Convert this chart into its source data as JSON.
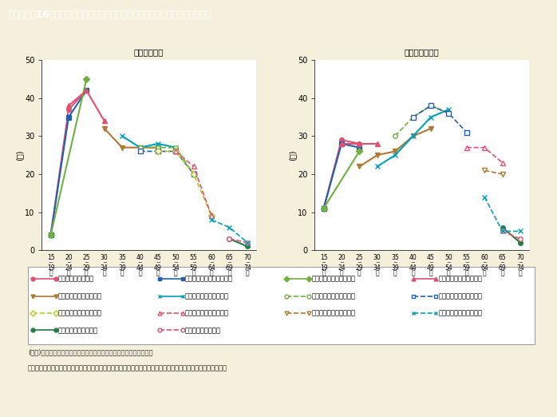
{
  "title": "第１－特－16図　女性の年齢階級別労働力率の世代による特徴（雇用形態別）",
  "title_bg": "#7a6642",
  "title_fg": "#ffffff",
  "bg_color": "#f5f0dc",
  "plot_bg": "#ffffff",
  "left_subtitle": "「正規雇用」",
  "right_subtitle": "「非正規雇用」",
  "left_ylabel": "(％)",
  "right_ylabel": "(％)",
  "ylim": [
    0,
    50
  ],
  "yticks": [
    0,
    10,
    20,
    30,
    40,
    50
  ],
  "x_labels_top": [
    "15",
    "20",
    "25",
    "30",
    "35",
    "40",
    "45",
    "50",
    "55",
    "60",
    "65",
    "70"
  ],
  "x_labels_bot": [
    "19",
    "24",
    "29",
    "34",
    "39",
    "44",
    "49",
    "54",
    "59",
    "64",
    "69",
    "74"
  ],
  "series": [
    {
      "label": "平成５～９年生まれ",
      "color": "#e05070",
      "linestyle": "solid",
      "marker": "o",
      "mfc": "#e05070",
      "lw": 1.5,
      "ms": 4,
      "left_data": [
        4,
        37,
        42,
        null,
        null,
        null,
        null,
        null,
        null,
        null,
        null,
        null
      ],
      "right_data": [
        11,
        29,
        28,
        null,
        null,
        null,
        null,
        null,
        null,
        null,
        null,
        null
      ]
    },
    {
      "label": "昭和６３～平成４年生まれ",
      "color": "#2060b0",
      "linestyle": "solid",
      "marker": "s",
      "mfc": "#2060b0",
      "lw": 1.5,
      "ms": 4,
      "left_data": [
        4,
        35,
        42,
        null,
        null,
        null,
        null,
        null,
        null,
        null,
        null,
        null
      ],
      "right_data": [
        11,
        28,
        27,
        null,
        null,
        null,
        null,
        null,
        null,
        null,
        null,
        null
      ]
    },
    {
      "label": "昭和５８～６２年生まれ",
      "color": "#70b040",
      "linestyle": "solid",
      "marker": "D",
      "mfc": "#70b040",
      "lw": 1.5,
      "ms": 4,
      "left_data": [
        4,
        null,
        45,
        null,
        null,
        null,
        null,
        null,
        null,
        null,
        null,
        null
      ],
      "right_data": [
        11,
        null,
        26,
        null,
        null,
        null,
        null,
        null,
        null,
        null,
        null,
        null
      ]
    },
    {
      "label": "昭和５３～５７年生まれ",
      "color": "#e05070",
      "linestyle": "solid",
      "marker": "^",
      "mfc": "#e05070",
      "lw": 1.5,
      "ms": 4,
      "left_data": [
        null,
        38,
        42,
        34,
        null,
        null,
        null,
        null,
        null,
        null,
        null,
        null
      ],
      "right_data": [
        null,
        28,
        28,
        28,
        null,
        null,
        null,
        null,
        null,
        null,
        null,
        null
      ]
    },
    {
      "label": "昭和４８～５２年生まれ",
      "color": "#b07830",
      "linestyle": "solid",
      "marker": "v",
      "mfc": "#b07830",
      "lw": 1.5,
      "ms": 4,
      "left_data": [
        null,
        null,
        null,
        32,
        27,
        27,
        27,
        null,
        null,
        null,
        null,
        null
      ],
      "right_data": [
        null,
        null,
        22,
        25,
        26,
        30,
        32,
        null,
        null,
        null,
        null,
        null
      ]
    },
    {
      "label": "昭和４３～４７年生まれ",
      "color": "#00a0c0",
      "linestyle": "solid",
      "marker": "x",
      "mfc": "#00a0c0",
      "lw": 1.5,
      "ms": 5,
      "left_data": [
        null,
        null,
        null,
        null,
        30,
        27,
        28,
        27,
        null,
        null,
        null,
        null
      ],
      "right_data": [
        null,
        null,
        null,
        22,
        25,
        30,
        35,
        37,
        null,
        null,
        null,
        null
      ]
    },
    {
      "label": "昭和３８～４２年生まれ",
      "color": "#70b040",
      "linestyle": "dashed",
      "marker": "o",
      "mfc": "white",
      "lw": 1.2,
      "ms": 4,
      "left_data": [
        null,
        null,
        null,
        null,
        null,
        27,
        27,
        27,
        20,
        null,
        null,
        null
      ],
      "right_data": [
        null,
        null,
        null,
        null,
        30,
        35,
        38,
        36,
        null,
        null,
        null,
        null
      ]
    },
    {
      "label": "昭和３３～３７年生まれ",
      "color": "#2060b0",
      "linestyle": "dashed",
      "marker": "s",
      "mfc": "white",
      "lw": 1.2,
      "ms": 4,
      "left_data": [
        null,
        null,
        null,
        null,
        null,
        26,
        26,
        26,
        20,
        null,
        null,
        null
      ],
      "right_data": [
        null,
        null,
        null,
        null,
        null,
        35,
        38,
        36,
        31,
        null,
        null,
        null
      ]
    },
    {
      "label": "昭和２８～３２年生まれ",
      "color": "#b8c820",
      "linestyle": "dashed",
      "marker": "D",
      "mfc": "white",
      "lw": 1.2,
      "ms": 4,
      "left_data": [
        null,
        null,
        null,
        null,
        null,
        null,
        26,
        26,
        20,
        9,
        null,
        null
      ],
      "right_data": [
        null,
        null,
        null,
        null,
        null,
        null,
        null,
        null,
        null,
        null,
        null,
        null
      ]
    },
    {
      "label": "昭和２３～２７年生まれ",
      "color": "#e05070",
      "linestyle": "dashed",
      "marker": "^",
      "mfc": "white",
      "lw": 1.2,
      "ms": 4,
      "left_data": [
        null,
        null,
        null,
        null,
        null,
        null,
        null,
        26,
        22,
        9,
        null,
        null
      ],
      "right_data": [
        null,
        null,
        null,
        null,
        null,
        null,
        null,
        null,
        27,
        27,
        23,
        null
      ]
    },
    {
      "label": "昭和１８～２２年生まれ",
      "color": "#b07830",
      "linestyle": "dashed",
      "marker": "v",
      "mfc": "white",
      "lw": 1.2,
      "ms": 4,
      "left_data": [
        null,
        null,
        null,
        null,
        null,
        null,
        null,
        null,
        null,
        null,
        null,
        null
      ],
      "right_data": [
        null,
        null,
        null,
        null,
        null,
        null,
        null,
        null,
        null,
        21,
        20,
        null
      ]
    },
    {
      "label": "昭和８～１２年生まれ",
      "color": "#208040",
      "linestyle": "solid",
      "marker": "o",
      "mfc": "#208040",
      "lw": 1.5,
      "ms": 4,
      "left_data": [
        null,
        null,
        null,
        null,
        null,
        null,
        null,
        null,
        null,
        null,
        3,
        1
      ],
      "right_data": [
        null,
        null,
        null,
        null,
        null,
        null,
        null,
        null,
        null,
        null,
        6,
        2
      ]
    },
    {
      "label": "昭和３～７年生まれ",
      "color": "#e05070",
      "linestyle": "dashed",
      "marker": "o",
      "mfc": "white",
      "lw": 1.2,
      "ms": 4,
      "left_data": [
        null,
        null,
        null,
        null,
        null,
        null,
        null,
        null,
        null,
        null,
        3,
        2
      ],
      "right_data": [
        null,
        null,
        null,
        null,
        null,
        null,
        null,
        null,
        null,
        null,
        5,
        3
      ]
    },
    {
      "label": "昭和１３～１７年生まれ",
      "color": "#00a0c0",
      "linestyle": "dashed",
      "marker": "x",
      "mfc": "#00a0c0",
      "lw": 1.2,
      "ms": 5,
      "left_data": [
        null,
        null,
        null,
        null,
        null,
        null,
        null,
        null,
        null,
        8,
        6,
        2
      ],
      "right_data": [
        null,
        null,
        null,
        null,
        null,
        null,
        null,
        null,
        null,
        14,
        5,
        5
      ]
    }
  ],
  "legend_rows": [
    [
      0,
      1,
      2,
      3
    ],
    [
      4,
      5,
      6,
      7
    ],
    [
      8,
      9,
      10,
      13
    ],
    [
      11,
      12,
      -1,
      -1
    ]
  ],
  "footnote1": "(備考)１．総務省「労働力調査（詳細集計）」（年平均）より作成。",
  "footnote2": "　　　２．「正規の職員・従業員」を「正規雇用」、「非正規の職員・従業員」を「非正規雇用」としている。"
}
